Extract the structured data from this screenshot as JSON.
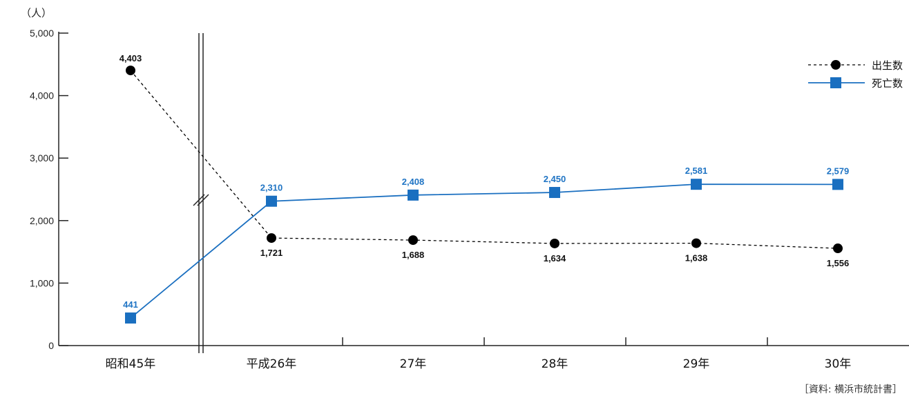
{
  "chart_data": {
    "type": "line",
    "y_unit": "（人）",
    "ylim": [
      0,
      5000
    ],
    "y_ticks": [
      "0",
      "1,000",
      "2,000",
      "3,000",
      "4,000",
      "5,000"
    ],
    "categories": [
      "昭和45年",
      "平成26年",
      "27年",
      "28年",
      "29年",
      "30年"
    ],
    "axis_break": "between 昭和45年 and 平成26年",
    "series": [
      {
        "name": "出生数",
        "values": [
          4403,
          1721,
          1688,
          1634,
          1638,
          1556
        ],
        "labels": [
          "4,403",
          "1,721",
          "1,688",
          "1,634",
          "1,638",
          "1,556"
        ],
        "color": "#000000",
        "marker": "circle",
        "line_style": "dashed"
      },
      {
        "name": "死亡数",
        "values": [
          441,
          2310,
          2408,
          2450,
          2581,
          2579
        ],
        "labels": [
          "441",
          "2,310",
          "2,408",
          "2,450",
          "2,581",
          "2,579"
        ],
        "color": "#1a6fc0",
        "marker": "square",
        "line_style": "solid"
      }
    ],
    "legend_position": "top-right",
    "source": "［資料: 横浜市統計書］"
  }
}
